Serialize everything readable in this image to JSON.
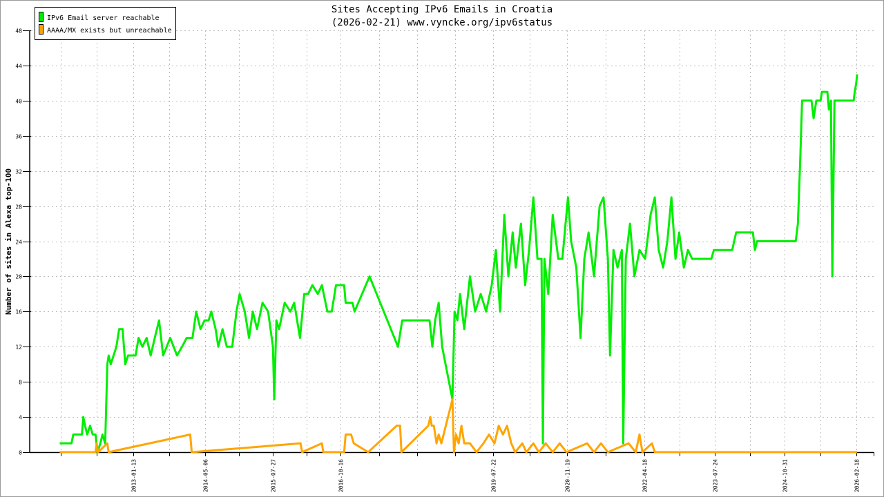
{
  "chart_data": {
    "type": "line",
    "title": "Sites Accepting IPv6 Emails in Croatia",
    "subtitle": "(2026-02-21) www.vyncke.org/ipv6status",
    "xlabel": "",
    "ylabel": "Number of sites in Alexa top-100",
    "xlim": [
      "2011-03-10",
      "2026-06-10"
    ],
    "ylim": [
      0,
      48
    ],
    "yticks": [
      0,
      4,
      8,
      12,
      16,
      20,
      24,
      28,
      32,
      36,
      40,
      44,
      48
    ],
    "xticks": [
      "2013-01-13",
      "2014-05-06",
      "2015-07-27",
      "2016-10-16",
      "2019-07-22",
      "2020-11-19",
      "2022-04-18",
      "2023-07-24",
      "2024-10-31",
      "2026-02-18"
    ],
    "grid": true,
    "legend_placement": "top-left",
    "series": [
      {
        "name": "IPv6 Email server reachable",
        "color": "#00ee00",
        "points": [
          [
            "2011-09-15",
            1
          ],
          [
            "2011-12-02",
            1
          ],
          [
            "2011-12-14",
            2
          ],
          [
            "2012-02-09",
            2
          ],
          [
            "2012-02-18",
            4
          ],
          [
            "2012-03-01",
            3
          ],
          [
            "2012-03-15",
            2
          ],
          [
            "2012-04-03",
            3
          ],
          [
            "2012-04-21",
            2
          ],
          [
            "2012-05-09",
            2
          ],
          [
            "2012-05-22",
            0
          ],
          [
            "2012-06-10",
            1
          ],
          [
            "2012-06-24",
            2
          ],
          [
            "2012-07-12",
            1
          ],
          [
            "2012-07-26",
            10
          ],
          [
            "2012-08-04",
            11
          ],
          [
            "2012-08-18",
            10
          ],
          [
            "2012-09-24",
            12
          ],
          [
            "2012-10-12",
            14
          ],
          [
            "2012-11-04",
            14
          ],
          [
            "2012-11-22",
            10
          ],
          [
            "2012-12-10",
            11
          ],
          [
            "2013-01-29",
            11
          ],
          [
            "2013-02-18",
            13
          ],
          [
            "2013-03-15",
            12
          ],
          [
            "2013-04-12",
            13
          ],
          [
            "2013-05-09",
            11
          ],
          [
            "2013-06-05",
            13
          ],
          [
            "2013-07-03",
            15
          ],
          [
            "2013-07-30",
            11
          ],
          [
            "2013-09-15",
            13
          ],
          [
            "2013-10-30",
            11
          ],
          [
            "2013-12-02",
            12
          ],
          [
            "2014-01-02",
            13
          ],
          [
            "2014-02-09",
            13
          ],
          [
            "2014-03-06",
            16
          ],
          [
            "2014-04-03",
            14
          ],
          [
            "2014-04-30",
            15
          ],
          [
            "2014-05-27",
            15
          ],
          [
            "2014-06-14",
            16
          ],
          [
            "2014-07-12",
            14
          ],
          [
            "2014-07-30",
            12
          ],
          [
            "2014-08-27",
            14
          ],
          [
            "2014-09-24",
            12
          ],
          [
            "2014-10-30",
            12
          ],
          [
            "2014-11-27",
            16
          ],
          [
            "2014-12-18",
            18
          ],
          [
            "2015-01-21",
            16
          ],
          [
            "2015-02-18",
            13
          ],
          [
            "2015-03-15",
            16
          ],
          [
            "2015-04-12",
            14
          ],
          [
            "2015-05-18",
            17
          ],
          [
            "2015-06-24",
            16
          ],
          [
            "2015-07-26",
            12
          ],
          [
            "2015-08-04",
            6
          ],
          [
            "2015-08-18",
            15
          ],
          [
            "2015-09-05",
            14
          ],
          [
            "2015-10-12",
            17
          ],
          [
            "2015-11-18",
            16
          ],
          [
            "2015-12-14",
            17
          ],
          [
            "2016-01-02",
            15
          ],
          [
            "2016-01-21",
            13
          ],
          [
            "2016-02-18",
            18
          ],
          [
            "2016-03-15",
            18
          ],
          [
            "2016-04-12",
            19
          ],
          [
            "2016-05-18",
            18
          ],
          [
            "2016-06-14",
            19
          ],
          [
            "2016-07-20",
            16
          ],
          [
            "2016-08-18",
            16
          ],
          [
            "2016-09-15",
            19
          ],
          [
            "2016-11-08",
            19
          ],
          [
            "2016-11-18",
            17
          ],
          [
            "2017-01-02",
            17
          ],
          [
            "2017-01-16",
            16
          ],
          [
            "2017-04-25",
            20
          ],
          [
            "2017-10-30",
            12
          ],
          [
            "2017-11-27",
            15
          ],
          [
            "2018-05-27",
            15
          ],
          [
            "2018-06-14",
            12
          ],
          [
            "2018-07-03",
            15
          ],
          [
            "2018-07-26",
            17
          ],
          [
            "2018-08-18",
            12
          ],
          [
            "2018-10-25",
            6
          ],
          [
            "2018-11-08",
            16
          ],
          [
            "2018-11-27",
            15
          ],
          [
            "2018-12-14",
            18
          ],
          [
            "2019-01-11",
            14
          ],
          [
            "2019-02-18",
            20
          ],
          [
            "2019-03-24",
            16
          ],
          [
            "2019-04-30",
            18
          ],
          [
            "2019-06-05",
            16
          ],
          [
            "2019-07-12",
            19
          ],
          [
            "2019-08-08",
            23
          ],
          [
            "2019-09-05",
            16
          ],
          [
            "2019-10-03",
            27
          ],
          [
            "2019-10-30",
            20
          ],
          [
            "2019-11-27",
            25
          ],
          [
            "2019-12-18",
            21
          ],
          [
            "2020-01-21",
            26
          ],
          [
            "2020-02-18",
            19
          ],
          [
            "2020-03-15",
            23
          ],
          [
            "2020-04-12",
            29
          ],
          [
            "2020-05-09",
            22
          ],
          [
            "2020-06-05",
            22
          ],
          [
            "2020-06-14",
            1
          ],
          [
            "2020-06-24",
            22
          ],
          [
            "2020-07-20",
            18
          ],
          [
            "2020-08-18",
            27
          ],
          [
            "2020-09-24",
            22
          ],
          [
            "2020-10-21",
            22
          ],
          [
            "2020-11-27",
            29
          ],
          [
            "2020-12-18",
            24
          ],
          [
            "2021-01-21",
            21
          ],
          [
            "2021-02-18",
            13
          ],
          [
            "2021-03-15",
            22
          ],
          [
            "2021-04-12",
            25
          ],
          [
            "2021-05-18",
            20
          ],
          [
            "2021-06-24",
            28
          ],
          [
            "2021-07-20",
            29
          ],
          [
            "2021-08-18",
            22
          ],
          [
            "2021-09-01",
            11
          ],
          [
            "2021-09-24",
            23
          ],
          [
            "2021-10-21",
            21
          ],
          [
            "2021-11-18",
            23
          ],
          [
            "2021-11-27",
            1
          ],
          [
            "2021-12-14",
            22
          ],
          [
            "2022-01-11",
            26
          ],
          [
            "2022-02-09",
            20
          ],
          [
            "2022-03-15",
            23
          ],
          [
            "2022-04-21",
            22
          ],
          [
            "2022-05-27",
            27
          ],
          [
            "2022-06-24",
            29
          ],
          [
            "2022-07-20",
            23
          ],
          [
            "2022-08-18",
            21
          ],
          [
            "2022-09-15",
            24
          ],
          [
            "2022-10-12",
            29
          ],
          [
            "2022-11-08",
            22
          ],
          [
            "2022-12-02",
            25
          ],
          [
            "2023-01-02",
            21
          ],
          [
            "2023-01-29",
            23
          ],
          [
            "2023-02-26",
            22
          ],
          [
            "2023-07-03",
            22
          ],
          [
            "2023-07-20",
            23
          ],
          [
            "2023-11-18",
            23
          ],
          [
            "2023-12-14",
            25
          ],
          [
            "2024-04-03",
            25
          ],
          [
            "2024-04-16",
            23
          ],
          [
            "2024-04-30",
            24
          ],
          [
            "2025-01-11",
            24
          ],
          [
            "2025-01-25",
            26
          ],
          [
            "2025-02-09",
            33
          ],
          [
            "2025-02-22",
            40
          ],
          [
            "2025-04-25",
            40
          ],
          [
            "2025-05-09",
            38
          ],
          [
            "2025-05-27",
            40
          ],
          [
            "2025-06-24",
            40
          ],
          [
            "2025-07-03",
            41
          ],
          [
            "2025-08-08",
            41
          ],
          [
            "2025-08-18",
            39
          ],
          [
            "2025-09-01",
            40
          ],
          [
            "2025-09-10",
            20
          ],
          [
            "2025-09-24",
            40
          ],
          [
            "2026-01-29",
            40
          ],
          [
            "2026-02-05",
            41
          ],
          [
            "2026-02-15",
            42
          ],
          [
            "2026-02-21",
            43
          ]
        ]
      },
      {
        "name": "AAAA/MX exists but unreachable",
        "color": "#ffa500",
        "points": [
          [
            "2011-09-15",
            0
          ],
          [
            "2012-05-09",
            0
          ],
          [
            "2012-05-17",
            1
          ],
          [
            "2012-05-26",
            0
          ],
          [
            "2012-07-26",
            1
          ],
          [
            "2012-08-04",
            0
          ],
          [
            "2014-01-25",
            2
          ],
          [
            "2014-02-04",
            0
          ],
          [
            "2016-01-25",
            1
          ],
          [
            "2016-02-04",
            0
          ],
          [
            "2016-06-14",
            1
          ],
          [
            "2016-06-23",
            0
          ],
          [
            "2016-11-08",
            0
          ],
          [
            "2016-11-18",
            2
          ],
          [
            "2016-12-24",
            2
          ],
          [
            "2017-01-11",
            1
          ],
          [
            "2017-04-16",
            0
          ],
          [
            "2017-10-21",
            3
          ],
          [
            "2017-11-13",
            3
          ],
          [
            "2017-11-22",
            0
          ],
          [
            "2018-05-18",
            3
          ],
          [
            "2018-06-01",
            4
          ],
          [
            "2018-06-10",
            3
          ],
          [
            "2018-06-24",
            3
          ],
          [
            "2018-07-12",
            1
          ],
          [
            "2018-07-26",
            2
          ],
          [
            "2018-08-13",
            1
          ],
          [
            "2018-10-25",
            6
          ],
          [
            "2018-11-04",
            0
          ],
          [
            "2018-11-18",
            2
          ],
          [
            "2018-12-05",
            1
          ],
          [
            "2018-12-24",
            3
          ],
          [
            "2019-01-11",
            1
          ],
          [
            "2019-02-18",
            1
          ],
          [
            "2019-04-03",
            0
          ],
          [
            "2019-05-18",
            1
          ],
          [
            "2019-06-24",
            2
          ],
          [
            "2019-07-30",
            1
          ],
          [
            "2019-08-27",
            3
          ],
          [
            "2019-09-24",
            2
          ],
          [
            "2019-10-21",
            3
          ],
          [
            "2019-11-18",
            1
          ],
          [
            "2019-12-14",
            0
          ],
          [
            "2020-01-30",
            1
          ],
          [
            "2020-02-26",
            0
          ],
          [
            "2020-04-12",
            1
          ],
          [
            "2020-05-18",
            0
          ],
          [
            "2020-07-03",
            1
          ],
          [
            "2020-08-18",
            0
          ],
          [
            "2020-10-03",
            1
          ],
          [
            "2020-11-18",
            0
          ],
          [
            "2021-04-03",
            1
          ],
          [
            "2021-05-18",
            0
          ],
          [
            "2021-07-03",
            1
          ],
          [
            "2021-08-18",
            0
          ],
          [
            "2022-01-02",
            1
          ],
          [
            "2022-02-18",
            0
          ],
          [
            "2022-03-15",
            2
          ],
          [
            "2022-04-03",
            0
          ],
          [
            "2022-06-05",
            1
          ],
          [
            "2022-06-24",
            0
          ],
          [
            "2026-02-21",
            0
          ]
        ]
      }
    ]
  }
}
